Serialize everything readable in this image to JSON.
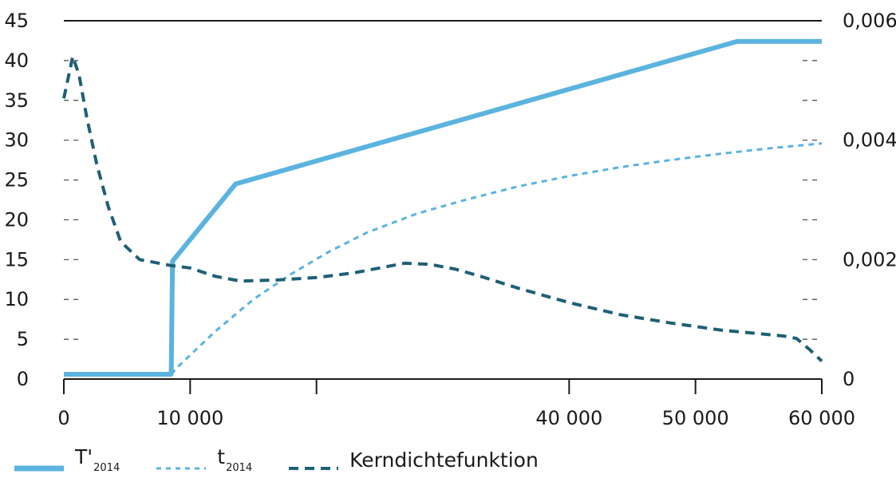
{
  "chart_data": {
    "type": "line",
    "x_ticks": [
      "0",
      "10000",
      "",
      "40000",
      "50000",
      "60000"
    ],
    "x_tick_values": [
      0,
      10000,
      20000,
      40000,
      50000,
      60000
    ],
    "x_tick_labels": [
      "0",
      "10 000",
      "",
      "40 000",
      "50 000",
      "60 000"
    ],
    "xlim": [
      0,
      60000
    ],
    "y_left": {
      "lim": [
        0,
        45
      ],
      "ticks": [
        0,
        5,
        10,
        15,
        20,
        25,
        30,
        35,
        40,
        45
      ],
      "tick_labels": [
        "0",
        "5",
        "10",
        "15",
        "20",
        "25",
        "30",
        "35",
        "40",
        "45"
      ]
    },
    "y_right": {
      "lim": [
        0,
        0.006
      ],
      "ticks": [
        0,
        0.002,
        0.004,
        0.006
      ],
      "tick_labels": [
        "0",
        "0,002",
        "0,004",
        "0,006"
      ]
    },
    "grid": "dashed tick marks at left and right edges; top border line",
    "series": [
      {
        "name": "T'2014",
        "label_main": "T'",
        "label_sub": "2014",
        "axis": "left",
        "style": "solid",
        "color": "#5bb3df",
        "x": [
          0,
          8500,
          8600,
          13600,
          53300,
          60000
        ],
        "y": [
          0.6,
          0.6,
          14.8,
          24.5,
          42.4,
          42.4
        ]
      },
      {
        "name": "t2014",
        "label_main": "t",
        "label_sub": "2014",
        "axis": "left",
        "style": "dotted",
        "color": "#5bb3df",
        "x": [
          8500,
          9000,
          12000,
          15000,
          18000,
          21000,
          24000,
          28000,
          32000,
          36000,
          40000,
          44000,
          48000,
          52000,
          56000,
          60000
        ],
        "y": [
          0.6,
          1.5,
          6.0,
          10.0,
          13.2,
          16.0,
          18.4,
          20.8,
          22.6,
          24.2,
          25.5,
          26.6,
          27.5,
          28.3,
          29.0,
          29.6
        ]
      },
      {
        "name": "Kerndichtefunktion",
        "label_main": "Kerndichtefunktion",
        "label_sub": "",
        "axis": "right",
        "style": "dashed",
        "color": "#1f5f75",
        "x": [
          0,
          300,
          700,
          1200,
          1800,
          2600,
          3500,
          4500,
          6000,
          8500,
          10000,
          12000,
          14000,
          17000,
          20000,
          23000,
          25000,
          27000,
          29000,
          31000,
          33000,
          36000,
          40000,
          44000,
          48000,
          52000,
          55000,
          57000,
          58000,
          59000,
          60000
        ],
        "y": [
          0.0047,
          0.005,
          0.0054,
          0.0051,
          0.0044,
          0.0036,
          0.0029,
          0.0023,
          0.002,
          0.0019,
          0.00186,
          0.00172,
          0.00164,
          0.00166,
          0.0017,
          0.00178,
          0.00186,
          0.00194,
          0.00192,
          0.00184,
          0.00172,
          0.00152,
          0.00128,
          0.00108,
          0.00094,
          0.00082,
          0.00076,
          0.00072,
          0.00068,
          0.0005,
          0.0003
        ]
      }
    ],
    "legend_position": "bottom-left"
  }
}
